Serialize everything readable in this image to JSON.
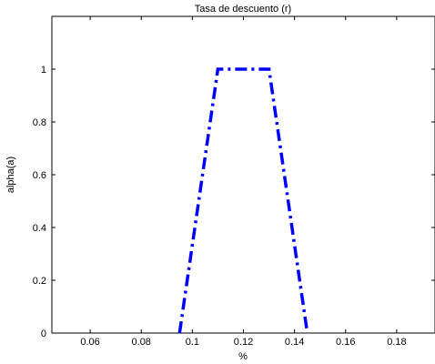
{
  "chart_data": {
    "type": "line",
    "title": "Tasa de descuento (r)",
    "xlabel": "%",
    "ylabel": "alpha(a)",
    "xlim": [
      0.045,
      0.195
    ],
    "ylim": [
      0,
      1.2
    ],
    "xticks": [
      0.06,
      0.08,
      0.1,
      0.12,
      0.14,
      0.16,
      0.18
    ],
    "xtick_labels": [
      "0.06",
      "0.08",
      "0.1",
      "0.12",
      "0.14",
      "0.16",
      "0.18"
    ],
    "yticks": [
      0,
      0.2,
      0.4,
      0.6,
      0.8,
      1
    ],
    "ytick_labels": [
      "0",
      "0.2",
      "0.4",
      "0.6",
      "0.8",
      "1"
    ],
    "grid": false,
    "series": [
      {
        "x": [
          0.095,
          0.11,
          0.13,
          0.145
        ],
        "y": [
          0,
          1,
          1,
          0
        ],
        "color": "#0000ff",
        "linestyle": "dash-dot"
      }
    ]
  }
}
